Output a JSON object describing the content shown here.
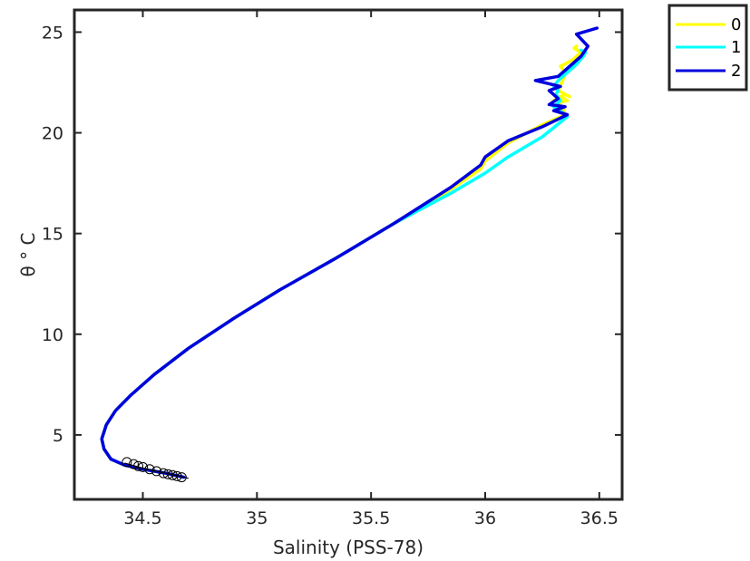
{
  "chart_data": {
    "type": "line",
    "xlabel": "Salinity (PSS-78)",
    "ylabel": "θ ° C",
    "xlim": [
      34.2,
      36.6
    ],
    "ylim": [
      1.8,
      26.1
    ],
    "xticks": [
      34.5,
      35,
      35.5,
      36,
      36.5
    ],
    "yticks": [
      5,
      10,
      15,
      20,
      25
    ],
    "grid": false,
    "legend_position": "outside-top-right",
    "series": [
      {
        "name": "0",
        "color": "#ffff00",
        "x": [
          34.68,
          34.6,
          34.5,
          34.42,
          34.36,
          34.33,
          34.32,
          34.34,
          34.38,
          34.45,
          34.55,
          34.7,
          34.9,
          35.1,
          35.35,
          35.6,
          35.85,
          35.98,
          36.0,
          36.1,
          36.25,
          36.35,
          36.34,
          36.32,
          36.36,
          36.33,
          36.3,
          36.32,
          36.35,
          36.37,
          36.32,
          36.34,
          36.35,
          36.33,
          36.38,
          36.4,
          36.42,
          36.39,
          36.4
        ],
        "y": [
          2.9,
          3.1,
          3.3,
          3.5,
          3.8,
          4.3,
          4.8,
          5.5,
          6.2,
          7.0,
          8.0,
          9.3,
          10.8,
          12.2,
          13.8,
          15.5,
          17.2,
          18.2,
          18.6,
          19.5,
          20.4,
          20.9,
          21.2,
          21.5,
          21.6,
          21.8,
          21.6,
          21.7,
          21.9,
          21.8,
          22.1,
          22.6,
          23.0,
          23.3,
          23.6,
          23.8,
          24.0,
          24.2,
          24.3
        ]
      },
      {
        "name": "1",
        "color": "#00ffff",
        "x": [
          34.68,
          34.6,
          34.5,
          34.42,
          34.36,
          34.33,
          34.32,
          34.34,
          34.38,
          34.45,
          34.55,
          34.7,
          34.9,
          35.1,
          35.35,
          35.6,
          35.85,
          36.0,
          36.1,
          36.25,
          36.36,
          36.34,
          36.3,
          36.33,
          36.31,
          36.32,
          36.3,
          36.32,
          36.36,
          36.4,
          36.43,
          36.44,
          36.42
        ],
        "y": [
          2.9,
          3.1,
          3.3,
          3.5,
          3.8,
          4.3,
          4.8,
          5.5,
          6.2,
          7.0,
          8.0,
          9.3,
          10.8,
          12.2,
          13.8,
          15.5,
          17.0,
          18.0,
          18.8,
          19.8,
          20.8,
          21.0,
          21.3,
          21.6,
          21.9,
          22.1,
          22.3,
          22.6,
          23.0,
          23.4,
          23.8,
          24.0,
          24.1
        ]
      },
      {
        "name": "2",
        "color": "#0000dd",
        "x": [
          34.68,
          34.6,
          34.5,
          34.42,
          34.36,
          34.33,
          34.32,
          34.34,
          34.38,
          34.45,
          34.55,
          34.7,
          34.9,
          35.1,
          35.35,
          35.6,
          35.85,
          35.98,
          36.0,
          36.1,
          36.25,
          36.36,
          36.3,
          36.35,
          36.28,
          36.32,
          36.3,
          36.28,
          36.33,
          36.22,
          36.32,
          36.36,
          36.42,
          36.45,
          36.4,
          36.49
        ],
        "y": [
          2.9,
          3.1,
          3.3,
          3.5,
          3.8,
          4.3,
          4.8,
          5.5,
          6.2,
          7.0,
          8.0,
          9.3,
          10.8,
          12.2,
          13.8,
          15.5,
          17.3,
          18.4,
          18.8,
          19.6,
          20.3,
          20.9,
          21.1,
          21.3,
          21.4,
          21.7,
          21.9,
          22.1,
          22.3,
          22.6,
          22.8,
          23.2,
          23.8,
          24.3,
          24.9,
          25.2
        ]
      }
    ],
    "reference_line": {
      "color": "#000000",
      "x": [
        34.42,
        34.5,
        34.6,
        34.7
      ],
      "y": [
        3.6,
        3.35,
        3.1,
        2.85
      ]
    },
    "markers": {
      "color": "#000000",
      "x": [
        34.43,
        34.46,
        34.48,
        34.5,
        34.53,
        34.56,
        34.59,
        34.61,
        34.63,
        34.65,
        34.67
      ],
      "y": [
        3.65,
        3.55,
        3.45,
        3.4,
        3.3,
        3.2,
        3.1,
        3.05,
        3.0,
        2.95,
        2.9
      ]
    }
  }
}
